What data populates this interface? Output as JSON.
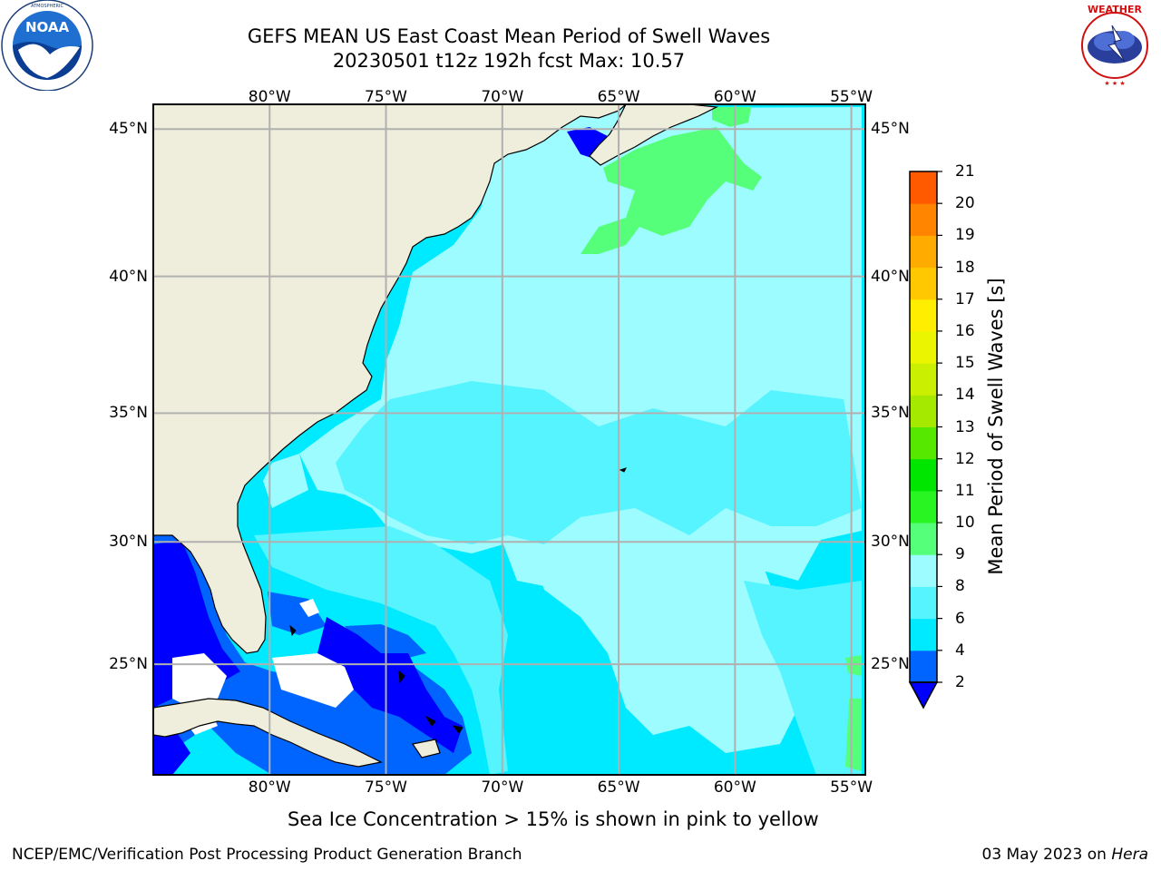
{
  "title": {
    "line1": "GEFS MEAN US East Coast Mean Period of Swell Waves",
    "line2": "20230501 t12z 192h fcst   Max: 10.57"
  },
  "logos": {
    "left": {
      "name": "NOAA",
      "ring_text": "NATIONAL OCEANIC AND ATMOSPHERIC ADMINISTRATION • U.S. DEPARTMENT OF COMMERCE"
    },
    "right": {
      "name": "NATIONAL WEATHER SERVICE"
    }
  },
  "map": {
    "lon_labels": [
      "80°W",
      "75°W",
      "70°W",
      "65°W",
      "60°W",
      "55°W"
    ],
    "lat_labels": [
      "45°N",
      "40°N",
      "35°N",
      "30°N",
      "25°N"
    ],
    "lon_values": [
      -80,
      -75,
      -70,
      -65,
      -60,
      -55
    ],
    "lat_values": [
      45,
      40,
      35,
      30,
      25
    ],
    "lon_range": [
      -85,
      -54.4
    ],
    "lat_range": [
      20.3,
      45.8
    ],
    "land_color": "#efeedd",
    "grid": true
  },
  "colorbar": {
    "label": "Mean Period of Swell Waves [s]",
    "levels": [
      2,
      4,
      6,
      8,
      9,
      10,
      11,
      12,
      13,
      14,
      15,
      16,
      17,
      18,
      19,
      20,
      21
    ],
    "colors": [
      "#0064ff",
      "#00eaff",
      "#56f4ff",
      "#9dfcff",
      "#55ff7a",
      "#29f522",
      "#00e600",
      "#57e800",
      "#a5e800",
      "#cbef00",
      "#ebf500",
      "#ffee00",
      "#ffc800",
      "#ffab00",
      "#ff8500",
      "#ff5a00",
      "#ff2500",
      "#ff0000"
    ],
    "extend_color": "#0000ff"
  },
  "note": "Sea Ice Concentration > 15% is shown in pink to yellow",
  "footer": {
    "left": "NCEP/EMC/Verification Post Processing Product Generation Branch",
    "date": "03 May 2023 on",
    "machine": "Hera"
  }
}
